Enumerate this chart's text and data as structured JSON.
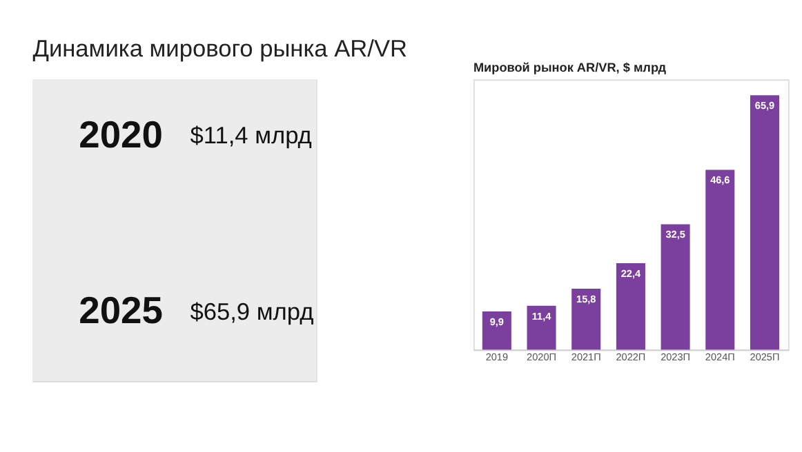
{
  "chart_data": [
    {
      "type": "other",
      "title": "Динамика мирового рынка AR/VR",
      "annotations": [
        "2020",
        "$11,4 млрд",
        "2025",
        "$65,9 млрд"
      ]
    },
    {
      "type": "bar",
      "title": "Мировой рынок AR/VR, $ млрд",
      "categories": [
        "2019",
        "2020П",
        "2021П",
        "2022П",
        "2023П",
        "2024П",
        "2025П"
      ],
      "values": [
        9.9,
        11.4,
        15.8,
        22.4,
        32.5,
        46.6,
        65.9
      ],
      "value_labels": [
        "9,9",
        "11,4",
        "15,8",
        "22,4",
        "32,5",
        "46,6",
        "65,9"
      ],
      "color": "#7b3f9e",
      "grid": false,
      "tick_labels": "x"
    }
  ]
}
